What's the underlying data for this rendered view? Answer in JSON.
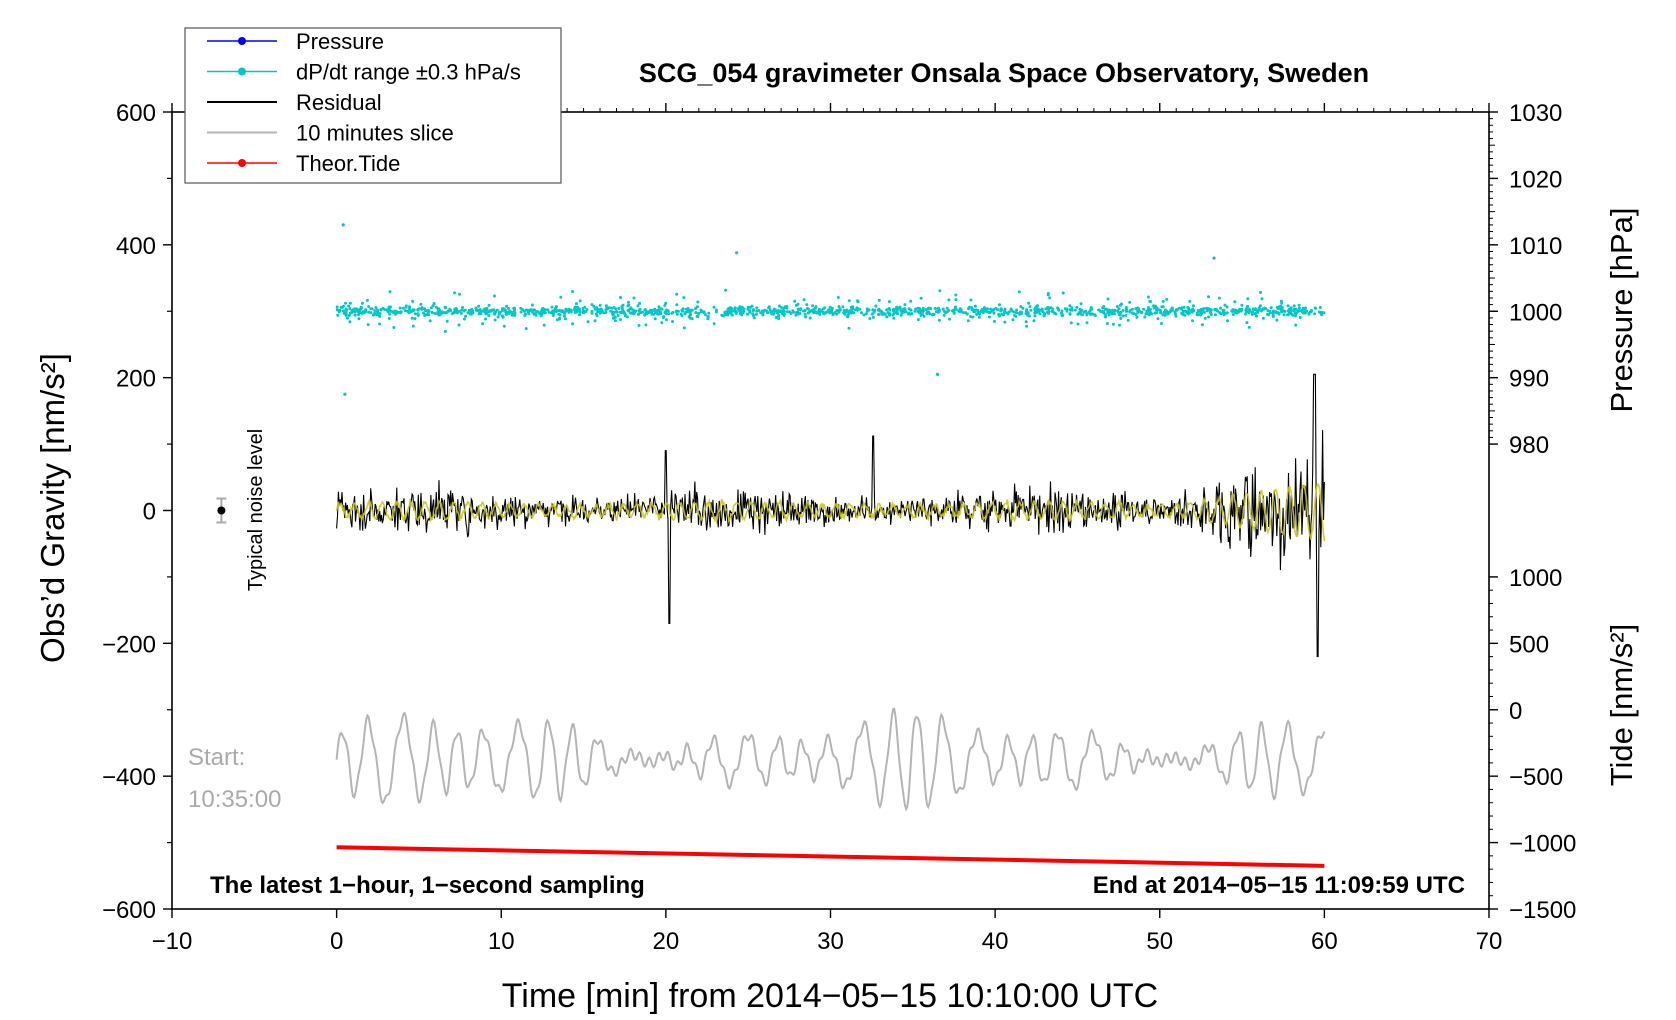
{
  "chart_data": {
    "type": "line",
    "title": "SCG_054 gravimeter Onsala Space Observatory, Sweden",
    "xlabel": "Time [min] from 2014−05−15 10:10:00 UTC",
    "ylabel_left": "Obs’d Gravity [nm/s²]",
    "ylabel_right_top": "Pressure [hPa]",
    "ylabel_right_bottom": "Tide [nm/s²]",
    "xlim": [
      -10,
      70
    ],
    "ylim": [
      -600,
      600
    ],
    "x_ticks": [
      "−10",
      "0",
      "10",
      "20",
      "30",
      "40",
      "50",
      "60",
      "70"
    ],
    "y_ticks_left": [
      "600",
      "400",
      "200",
      "0",
      "−200",
      "−400",
      "−600"
    ],
    "pressure_axis": {
      "range": [
        980,
        1030
      ],
      "ticks": [
        "1030",
        "1020",
        "1010",
        "1000",
        "990",
        "980"
      ]
    },
    "tide_axis": {
      "range": [
        -1500,
        1000
      ],
      "ticks": [
        "1000",
        "500",
        "0",
        "−500",
        "−1000",
        "−1500"
      ]
    },
    "legend": {
      "placement": "top-left",
      "entries": [
        {
          "label": "Pressure",
          "color": "#0000ff",
          "marker": "dot"
        },
        {
          "label": "dP/dt range ±0.3 hPa/s",
          "color": "#00c8c8",
          "marker": "dot"
        },
        {
          "label": "Residual",
          "color": "#000000",
          "marker": "line"
        },
        {
          "label": "10 minutes slice",
          "color": "#b4b4b4",
          "marker": "line"
        },
        {
          "label": "Theor.Tide",
          "color": "#ff0000",
          "marker": "dot"
        }
      ]
    },
    "series": [
      {
        "name": "dP/dt range ±0.3 hPa/s",
        "color": "#00c8c8",
        "x_range": [
          0,
          60
        ],
        "center": 300,
        "typical_spread": 20,
        "extremes": [
          430,
          175
        ]
      },
      {
        "name": "Residual",
        "color": "#000000",
        "x_range": [
          0,
          60
        ],
        "center": 0,
        "typical_amplitude": 40,
        "max": 205,
        "min": -220
      },
      {
        "name": "10 minutes slice",
        "color": "#b4b4b4",
        "x_range": [
          0,
          60
        ],
        "center": -375,
        "typical_amplitude": 50,
        "max": -255,
        "min": -480
      },
      {
        "name": "Theor.Tide",
        "color": "#ff0000",
        "x": [
          0,
          60
        ],
        "y": [
          -507,
          -535
        ]
      }
    ],
    "overlay_color": "#c8c814",
    "noise_marker": {
      "x": -7,
      "y": 0,
      "error": 18,
      "label": "Typical noise level"
    },
    "annotations": {
      "start_line1": "Start:",
      "start_line2": "10:35:00",
      "bottom_left": "The latest 1−hour, 1−second sampling",
      "bottom_right": "End at 2014−05−15 11:09:59 UTC"
    }
  }
}
